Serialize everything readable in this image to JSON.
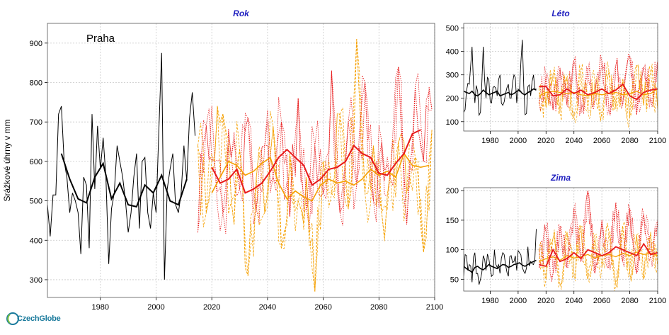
{
  "brand": {
    "logo_text": "CzechGlobe",
    "color": "#1a7a9c"
  },
  "colors": {
    "observed": "#000000",
    "model_red": "#e8191a",
    "model_orange": "#f5a000",
    "grid": "#c8c8c8",
    "title": "#1f1fbf"
  },
  "chart_data": [
    {
      "type": "line",
      "title": "Rok",
      "annotation": "Praha",
      "ylabel": "Srážkové úhrny v mm",
      "xlabel": "",
      "xlim": [
        1961,
        2100
      ],
      "ylim": [
        255,
        950
      ],
      "xticks": [
        1980,
        2000,
        2020,
        2040,
        2060,
        2080,
        2100
      ],
      "yticks": [
        300,
        400,
        500,
        600,
        700,
        800,
        900
      ],
      "grid": true,
      "series": [
        {
          "style": "observed-annual",
          "x": [
            1961,
            1962,
            1963,
            1964,
            1965,
            1966,
            1967,
            1968,
            1969,
            1970,
            1971,
            1972,
            1973,
            1974,
            1975,
            1976,
            1977,
            1978,
            1979,
            1980,
            1981,
            1982,
            1983,
            1984,
            1985,
            1986,
            1987,
            1988,
            1989,
            1990,
            1991,
            1992,
            1993,
            1994,
            1995,
            1996,
            1997,
            1998,
            1999,
            2000,
            2001,
            2002,
            2003,
            2004,
            2005,
            2006,
            2007,
            2008,
            2009,
            2010,
            2011,
            2012,
            2013,
            2014
          ],
          "y": [
            490,
            410,
            515,
            515,
            720,
            740,
            600,
            560,
            470,
            520,
            500,
            470,
            365,
            560,
            540,
            380,
            720,
            530,
            690,
            580,
            660,
            560,
            340,
            480,
            520,
            640,
            600,
            560,
            500,
            420,
            470,
            560,
            620,
            430,
            600,
            610,
            470,
            430,
            520,
            470,
            680,
            875,
            300,
            530,
            580,
            620,
            490,
            470,
            520,
            640,
            550,
            710,
            775,
            665
          ]
        },
        {
          "style": "observed-smoothed",
          "x": [
            1966,
            1969,
            1972,
            1975,
            1978,
            1981,
            1984,
            1987,
            1990,
            1993,
            1996,
            1999,
            2002,
            2005,
            2008,
            2011
          ],
          "y": [
            620,
            555,
            505,
            495,
            560,
            595,
            505,
            545,
            490,
            485,
            540,
            520,
            565,
            500,
            490,
            555
          ]
        },
        {
          "style": "model-red-annual",
          "x": [
            2015,
            2018,
            2021,
            2024,
            2027,
            2030,
            2033,
            2036,
            2039,
            2042,
            2045,
            2048,
            2051,
            2054,
            2057,
            2060,
            2063,
            2066,
            2069,
            2072,
            2075,
            2078,
            2081,
            2084,
            2087,
            2090,
            2093,
            2096,
            2099
          ],
          "y": [
            420,
            690,
            600,
            470,
            610,
            530,
            710,
            480,
            640,
            560,
            700,
            460,
            760,
            480,
            640,
            520,
            830,
            470,
            700,
            540,
            800,
            500,
            650,
            560,
            840,
            440,
            790,
            600,
            730
          ]
        },
        {
          "style": "model-red-smoothed",
          "x": [
            2020,
            2023,
            2026,
            2029,
            2032,
            2035,
            2038,
            2041,
            2044,
            2047,
            2050,
            2053,
            2056,
            2059,
            2062,
            2065,
            2068,
            2071,
            2074,
            2077,
            2080,
            2083,
            2086,
            2089,
            2092,
            2095
          ],
          "y": [
            585,
            545,
            555,
            580,
            520,
            530,
            545,
            575,
            610,
            630,
            610,
            590,
            540,
            555,
            580,
            585,
            600,
            640,
            620,
            610,
            570,
            565,
            595,
            620,
            670,
            680
          ]
        },
        {
          "style": "model-orange-annual",
          "x": [
            2015,
            2018,
            2021,
            2024,
            2027,
            2030,
            2033,
            2036,
            2039,
            2042,
            2045,
            2048,
            2051,
            2054,
            2057,
            2060,
            2063,
            2066,
            2069,
            2072,
            2075,
            2078,
            2081,
            2084,
            2087,
            2090,
            2093,
            2096,
            2099
          ],
          "y": [
            640,
            470,
            600,
            720,
            500,
            630,
            310,
            560,
            470,
            690,
            380,
            620,
            500,
            560,
            270,
            600,
            520,
            720,
            480,
            910,
            520,
            640,
            470,
            570,
            650,
            520,
            610,
            370,
            680
          ]
        },
        {
          "style": "model-orange-smoothed",
          "x": [
            2020,
            2023,
            2026,
            2029,
            2032,
            2035,
            2038,
            2041,
            2044,
            2047,
            2050,
            2053,
            2056,
            2059,
            2062,
            2065,
            2068,
            2071,
            2074,
            2077,
            2080,
            2083,
            2086,
            2089,
            2092,
            2095,
            2098
          ],
          "y": [
            520,
            560,
            600,
            590,
            565,
            575,
            595,
            610,
            545,
            505,
            525,
            510,
            500,
            540,
            555,
            545,
            550,
            540,
            555,
            580,
            565,
            575,
            560,
            620,
            590,
            585,
            590
          ]
        }
      ]
    },
    {
      "type": "line",
      "title": "Léto",
      "xlim": [
        1961,
        2100
      ],
      "ylim": [
        60,
        520
      ],
      "xticks": [
        1980,
        2000,
        2020,
        2040,
        2060,
        2080,
        2100
      ],
      "yticks": [
        100,
        200,
        300,
        400,
        500
      ],
      "grid": true,
      "series": [
        {
          "style": "observed-annual",
          "x": [
            1961,
            1963,
            1965,
            1967,
            1969,
            1971,
            1973,
            1975,
            1977,
            1979,
            1981,
            1983,
            1985,
            1987,
            1989,
            1991,
            1993,
            1995,
            1997,
            1999,
            2001,
            2003,
            2005,
            2007,
            2009,
            2011,
            2013
          ],
          "y": [
            140,
            230,
            260,
            420,
            180,
            230,
            140,
            420,
            200,
            280,
            180,
            250,
            210,
            300,
            170,
            220,
            260,
            200,
            300,
            180,
            230,
            450,
            130,
            250,
            210,
            300,
            240
          ],
          "smooth_y": [
            230,
            225,
            220,
            230,
            215,
            210,
            220,
            235,
            225,
            215,
            220,
            225,
            230,
            210,
            215,
            220,
            225,
            215,
            220,
            230,
            235,
            220,
            215,
            225,
            230,
            240,
            235
          ]
        },
        {
          "style": "model-annual",
          "x": [
            2015,
            2020,
            2025,
            2030,
            2035,
            2040,
            2045,
            2050,
            2055,
            2060,
            2065,
            2070,
            2075,
            2080,
            2085,
            2090,
            2095,
            2100
          ],
          "red": [
            180,
            300,
            150,
            330,
            170,
            360,
            140,
            320,
            190,
            360,
            150,
            340,
            170,
            380,
            130,
            330,
            200,
            360
          ],
          "orange": [
            240,
            160,
            300,
            140,
            290,
            120,
            310,
            150,
            270,
            140,
            320,
            160,
            280,
            120,
            340,
            170,
            300,
            150
          ],
          "red_smooth": [
            250,
            250,
            210,
            215,
            240,
            220,
            235,
            215,
            225,
            240,
            220,
            235,
            260,
            210,
            195,
            225,
            235,
            240
          ],
          "orange_smooth": [
            210,
            225,
            230,
            225,
            220,
            225,
            215,
            210,
            220,
            215,
            220,
            225,
            215,
            220,
            230,
            215,
            220,
            240
          ]
        }
      ]
    },
    {
      "type": "line",
      "title": "Zima",
      "xlim": [
        1961,
        2100
      ],
      "ylim": [
        30,
        205
      ],
      "xticks": [
        1980,
        2000,
        2020,
        2040,
        2060,
        2080,
        2100
      ],
      "yticks": [
        50,
        100,
        150,
        200
      ],
      "grid": true,
      "series": [
        {
          "style": "observed-annual",
          "x": [
            1961,
            1963,
            1965,
            1967,
            1969,
            1971,
            1973,
            1975,
            1977,
            1979,
            1981,
            1983,
            1985,
            1987,
            1989,
            1991,
            1993,
            1995,
            1997,
            1999,
            2001,
            2003,
            2005,
            2007,
            2009,
            2011,
            2013
          ],
          "y": [
            55,
            90,
            75,
            45,
            95,
            60,
            50,
            90,
            65,
            85,
            55,
            100,
            70,
            60,
            95,
            75,
            55,
            90,
            80,
            65,
            95,
            70,
            60,
            105,
            80,
            75,
            135
          ],
          "smooth_y": [
            72,
            68,
            65,
            62,
            70,
            72,
            68,
            66,
            70,
            75,
            72,
            70,
            68,
            72,
            75,
            74,
            70,
            72,
            75,
            76,
            78,
            74,
            72,
            75,
            78,
            80,
            82
          ]
        },
        {
          "style": "model-annual",
          "x": [
            2015,
            2020,
            2025,
            2030,
            2035,
            2040,
            2045,
            2050,
            2055,
            2060,
            2065,
            2070,
            2075,
            2080,
            2085,
            2090,
            2095,
            2100
          ],
          "red": [
            70,
            130,
            60,
            140,
            70,
            170,
            80,
            200,
            60,
            150,
            70,
            180,
            80,
            170,
            60,
            160,
            90,
            150
          ],
          "orange": [
            100,
            50,
            120,
            40,
            130,
            60,
            140,
            50,
            120,
            70,
            130,
            40,
            140,
            60,
            125,
            50,
            130,
            70
          ],
          "red_smooth": [
            75,
            72,
            100,
            80,
            85,
            95,
            85,
            100,
            95,
            90,
            95,
            105,
            100,
            95,
            90,
            110,
            92,
            95
          ],
          "orange_smooth": [
            80,
            85,
            88,
            82,
            90,
            86,
            88,
            92,
            86,
            90,
            92,
            88,
            94,
            90,
            96,
            92,
            94,
            90
          ]
        }
      ]
    }
  ]
}
